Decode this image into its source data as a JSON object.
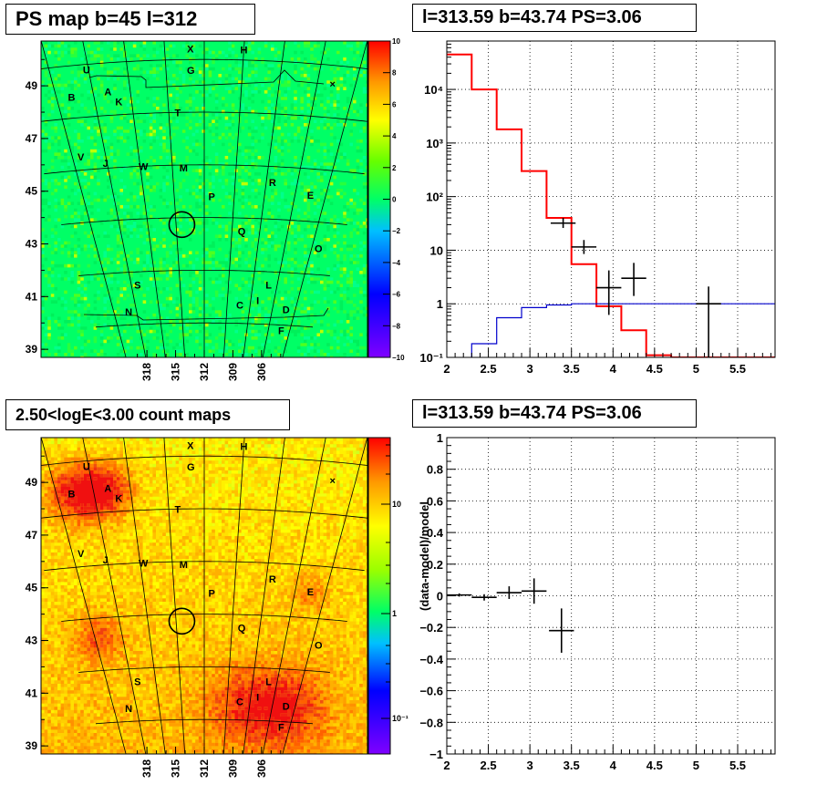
{
  "panels": {
    "ps_map_title": "PS map b=45 l=312",
    "spectrum_title": "l=313.59 b=43.74 PS=3.06",
    "count_map_title": "2.50<logE<3.00 count maps",
    "residual_title": "l=313.59 b=43.74 PS=3.06"
  },
  "maps": {
    "lon_ticks": [
      "318",
      "315",
      "312",
      "309",
      "306"
    ],
    "lat_ticks": [
      "49",
      "47",
      "45",
      "43",
      "41",
      "39"
    ],
    "source_labels": [
      {
        "t": "X",
        "lon": 312.7,
        "lat": 50.4
      },
      {
        "t": "H",
        "lon": 310.0,
        "lat": 50.4
      },
      {
        "t": "U",
        "lon": 318.1,
        "lat": 49.8
      },
      {
        "t": "G",
        "lon": 312.7,
        "lat": 49.6
      },
      {
        "t": "A",
        "lon": 317.2,
        "lat": 48.9
      },
      {
        "t": "B",
        "lon": 319.2,
        "lat": 48.8
      },
      {
        "t": "K",
        "lon": 316.7,
        "lat": 48.5
      },
      {
        "t": "T",
        "lon": 313.5,
        "lat": 48.0
      },
      {
        "t": "V",
        "lon": 319.5,
        "lat": 46.5
      },
      {
        "t": "J",
        "lon": 318.1,
        "lat": 46.2
      },
      {
        "t": "W",
        "lon": 315.8,
        "lat": 46.0
      },
      {
        "t": "M",
        "lon": 313.3,
        "lat": 45.9
      },
      {
        "t": "R",
        "lon": 307.6,
        "lat": 45.4
      },
      {
        "t": "E",
        "lon": 305.0,
        "lat": 45.0
      },
      {
        "t": "P",
        "lon": 311.5,
        "lat": 44.8
      },
      {
        "t": "Q",
        "lon": 309.3,
        "lat": 43.5
      },
      {
        "t": "O",
        "lon": 303.5,
        "lat": 43.0
      },
      {
        "t": "S",
        "lon": 317.5,
        "lat": 41.5
      },
      {
        "t": "L",
        "lon": 306.7,
        "lat": 41.5
      },
      {
        "t": "I",
        "lon": 307.4,
        "lat": 40.9
      },
      {
        "t": "C",
        "lon": 308.9,
        "lat": 40.7
      },
      {
        "t": "D",
        "lon": 304.8,
        "lat": 40.6
      },
      {
        "t": "N",
        "lon": 318.7,
        "lat": 40.5
      },
      {
        "t": "F",
        "lon": 304.8,
        "lat": 39.8
      }
    ],
    "marker_cross": "×",
    "target_circle": {
      "lon": 313.59,
      "lat": 43.74
    },
    "ps_colorbar": {
      "min": -10,
      "max": 10,
      "ticks": [
        "10",
        "8",
        "6",
        "4",
        "2",
        "0",
        "−2",
        "−4",
        "−6",
        "−8",
        "−10"
      ]
    },
    "count_colorbar": {
      "ticks": [
        "10",
        "1",
        "10⁻¹"
      ]
    }
  },
  "chart_data": [
    {
      "type": "line",
      "panel": "spectrum",
      "title": "l=313.59 b=43.74 PS=3.06",
      "xlim": [
        2.0,
        5.95
      ],
      "ylim": [
        0.1,
        80000
      ],
      "yscale": "log",
      "grid": true,
      "x_ticks": [
        "2",
        "2.5",
        "3",
        "3.5",
        "4",
        "4.5",
        "5",
        "5.5"
      ],
      "y_ticks": [
        {
          "v": 10000,
          "label": "10⁴"
        },
        {
          "v": 1000,
          "label": "10³"
        },
        {
          "v": 100,
          "label": "10²"
        },
        {
          "v": 10,
          "label": "10"
        },
        {
          "v": 1,
          "label": "1"
        },
        {
          "v": 0.1,
          "label": "10⁻¹"
        }
      ],
      "series": [
        {
          "kind": "step",
          "color": "#ff0000",
          "edges": [
            2.0,
            2.3,
            2.6,
            2.9,
            3.2,
            3.5,
            3.8,
            4.1,
            4.4,
            4.7,
            5.0,
            5.3,
            5.6,
            5.95
          ],
          "values": [
            45000,
            10000,
            1800,
            300,
            40,
            5.5,
            0.9,
            0.32,
            0.11,
            0.1,
            0.1,
            0.1,
            0.1
          ]
        },
        {
          "kind": "step",
          "color": "#0000cc",
          "edges": [
            2.0,
            2.3,
            2.6,
            2.9,
            3.2,
            3.5,
            3.8,
            4.1,
            4.4,
            4.7,
            5.0,
            5.3,
            5.6,
            5.95
          ],
          "values": [
            0.05,
            0.18,
            0.55,
            0.85,
            0.95,
            1.0,
            1.0,
            1.0,
            1.0,
            1.0,
            1.0,
            1.0,
            1.0
          ]
        },
        {
          "kind": "errorbar",
          "color": "#000000",
          "points": [
            {
              "x": 3.4,
              "y": 32,
              "xerr": 0.15,
              "ylo": 26,
              "yhi": 40
            },
            {
              "x": 3.65,
              "y": 11.5,
              "xerr": 0.15,
              "ylo": 8.5,
              "yhi": 15.5
            },
            {
              "x": 3.95,
              "y": 2.0,
              "xerr": 0.15,
              "ylo": 0.62,
              "yhi": 4.2
            },
            {
              "x": 4.25,
              "y": 3.0,
              "xerr": 0.15,
              "ylo": 1.4,
              "yhi": 5.8
            },
            {
              "x": 5.15,
              "y": 1.0,
              "xerr": 0.15,
              "ylo": 0.1,
              "yhi": 2.1
            }
          ]
        }
      ]
    },
    {
      "type": "scatter",
      "panel": "residual",
      "title": "l=313.59 b=43.74 PS=3.06",
      "ylabel": "(data-model)/model",
      "xlim": [
        2.0,
        5.95
      ],
      "ylim": [
        -1,
        1
      ],
      "grid": true,
      "x_ticks": [
        "2",
        "2.5",
        "3",
        "3.5",
        "4",
        "4.5",
        "5",
        "5.5"
      ],
      "y_ticks": [
        {
          "v": 1,
          "label": "1"
        },
        {
          "v": 0.8,
          "label": "0.8"
        },
        {
          "v": 0.6,
          "label": "0.6"
        },
        {
          "v": 0.4,
          "label": "0.4"
        },
        {
          "v": 0.2,
          "label": "0.2"
        },
        {
          "v": 0,
          "label": "0"
        },
        {
          "v": -0.2,
          "label": "−0.2"
        },
        {
          "v": -0.4,
          "label": "−0.4"
        },
        {
          "v": -0.6,
          "label": "−0.6"
        },
        {
          "v": -0.8,
          "label": "−0.8"
        },
        {
          "v": -1,
          "label": "−1"
        }
      ],
      "series": [
        {
          "kind": "errorbar",
          "color": "#000000",
          "points": [
            {
              "x": 2.15,
              "y": 0.005,
              "xerr": 0.15,
              "ylo": -0.005,
              "yhi": 0.015
            },
            {
              "x": 2.45,
              "y": -0.01,
              "xerr": 0.15,
              "ylo": -0.03,
              "yhi": 0.01
            },
            {
              "x": 2.75,
              "y": 0.02,
              "xerr": 0.15,
              "ylo": -0.02,
              "yhi": 0.06
            },
            {
              "x": 3.05,
              "y": 0.03,
              "xerr": 0.15,
              "ylo": -0.05,
              "yhi": 0.11
            },
            {
              "x": 3.38,
              "y": -0.22,
              "xerr": 0.15,
              "ylo": -0.36,
              "yhi": -0.08
            }
          ]
        }
      ]
    }
  ]
}
